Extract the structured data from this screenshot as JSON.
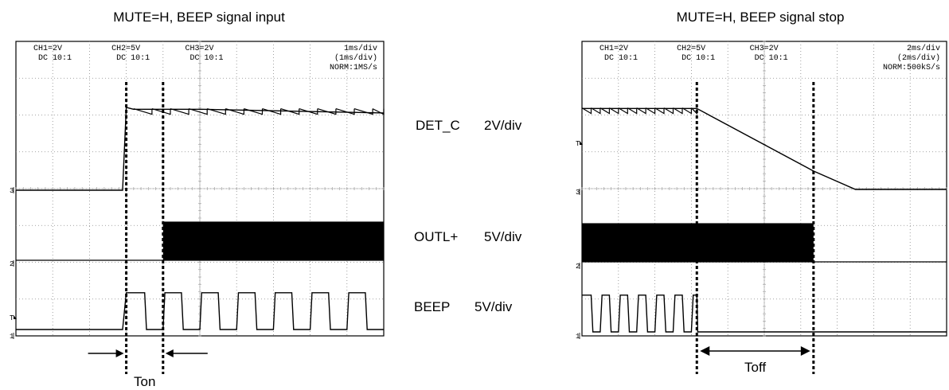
{
  "chart_data": [
    {
      "type": "line",
      "title": "MUTE=H, BEEP signal input",
      "x_unit": "ms",
      "xlim": [
        0,
        10
      ],
      "timebase": [
        "1ms/div",
        "(1ms/div)",
        "NORM:1MS/s"
      ],
      "channels": [
        {
          "label": "CH1=2V",
          "coupling": "DC 10:1",
          "marker": "1"
        },
        {
          "label": "CH2=5V",
          "coupling": "DC 10:1",
          "marker": "2"
        },
        {
          "label": "CH3=2V",
          "coupling": "DC 10:1",
          "marker": "3"
        }
      ],
      "trigger_marker": "T",
      "series": [
        {
          "name": "DET_C",
          "scale": "2V/div",
          "x": [
            0,
            2.9,
            3.0,
            3.2,
            4.0,
            5.0,
            10.0
          ],
          "y": [
            0,
            0,
            4.5,
            4.4,
            4.4,
            4.4,
            4.2
          ]
        },
        {
          "name": "OUTL+",
          "scale": "5V/div",
          "burst_start": 4.0,
          "burst_end": 10.0
        },
        {
          "name": "BEEP",
          "scale": "5V/div",
          "x": [
            0,
            2.9,
            3.0,
            3.5,
            3.55,
            4.0,
            4.05,
            4.5,
            4.55,
            5.0,
            5.05,
            5.5,
            5.55,
            6.0,
            6.05,
            6.5,
            6.55,
            7.0,
            7.05,
            7.5,
            7.55,
            8.0,
            8.05,
            8.5,
            8.55,
            9.0,
            9.05,
            9.5,
            9.55,
            10.0
          ],
          "y": [
            0,
            0,
            5,
            5,
            0,
            0,
            5,
            5,
            0,
            0,
            5,
            5,
            0,
            0,
            5,
            5,
            0,
            0,
            5,
            5,
            0,
            0,
            5,
            5,
            0,
            0,
            5,
            5,
            0,
            0
          ]
        }
      ],
      "annotation": {
        "label": "Ton",
        "from": 3.0,
        "to": 4.0
      }
    },
    {
      "type": "line",
      "title": "MUTE=H, BEEP signal stop",
      "x_unit": "ms",
      "xlim": [
        0,
        20
      ],
      "timebase": [
        "2ms/div",
        "(2ms/div)",
        "NORM:500kS/s"
      ],
      "channels": [
        {
          "label": "CH1=2V",
          "coupling": "DC 10:1",
          "marker": "1"
        },
        {
          "label": "CH2=5V",
          "coupling": "DC 10:1",
          "marker": "2"
        },
        {
          "label": "CH3=2V",
          "coupling": "DC 10:1",
          "marker": "3"
        }
      ],
      "trigger_marker": "T",
      "series": [
        {
          "name": "DET_C",
          "x": [
            0,
            6.3,
            12.7,
            15.0,
            20.0
          ],
          "y": [
            4.4,
            4.4,
            1.0,
            0,
            0
          ]
        },
        {
          "name": "OUTL+",
          "burst_start": 0,
          "burst_end": 12.7
        },
        {
          "name": "BEEP",
          "x": [
            0,
            0.5,
            0.6,
            1.0,
            1.1,
            1.5,
            1.6,
            2.0,
            2.1,
            2.5,
            2.6,
            3.0,
            3.1,
            3.5,
            3.6,
            4.0,
            4.1,
            4.5,
            4.6,
            5.0,
            5.1,
            5.5,
            5.6,
            6.0,
            6.1,
            6.3,
            6.35,
            20.0
          ],
          "y": [
            5,
            5,
            0,
            0,
            5,
            5,
            0,
            0,
            5,
            5,
            0,
            0,
            5,
            5,
            0,
            0,
            5,
            5,
            0,
            0,
            5,
            5,
            0,
            0,
            5,
            5,
            0,
            0
          ]
        }
      ],
      "annotation": {
        "label": "Toff",
        "from": 6.3,
        "to": 12.7
      }
    }
  ]
}
